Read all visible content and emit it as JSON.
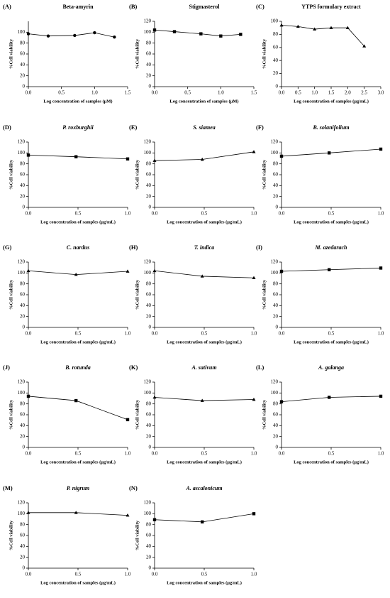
{
  "chart_data": [
    {
      "type": "line",
      "label": "(A)",
      "title": "Beta-amyrin",
      "title_style": "normal",
      "marker": "circle",
      "color": "#000000",
      "ylabel": "%Cell viability",
      "xlabel": "Log concentration of samples (μM)",
      "x": [
        0,
        0.3,
        0.7,
        1.0,
        1.3
      ],
      "values": [
        97,
        93,
        94,
        99,
        91
      ],
      "xlim": [
        0,
        1.5
      ],
      "xticks": [
        {
          "value": 0,
          "label": "0.0"
        },
        0.5,
        {
          "value": 1,
          "label": "1.0"
        },
        1.5
      ],
      "ylim": [
        0,
        120
      ],
      "yticks": [
        0,
        20,
        40,
        60,
        80,
        100
      ]
    },
    {
      "type": "line",
      "label": "(B)",
      "title": "Stigmasterol",
      "title_style": "normal",
      "marker": "square",
      "color": "#000000",
      "ylabel": "%Cell viability",
      "xlabel": "Log concentration of samples (μM)",
      "x": [
        0,
        0.3,
        0.7,
        1.0,
        1.3
      ],
      "values": [
        104,
        101,
        97,
        93,
        96
      ],
      "xlim": [
        0,
        1.5
      ],
      "xticks": [
        {
          "value": 0,
          "label": "0.0"
        },
        0.5,
        {
          "value": 1,
          "label": "1.0"
        },
        1.5
      ],
      "ylim": [
        0,
        120
      ],
      "yticks": [
        0,
        20,
        40,
        60,
        80,
        100,
        120
      ]
    },
    {
      "type": "line",
      "label": "(C)",
      "title": "YTPS formulary extract",
      "title_style": "normal",
      "marker": "triangle",
      "color": "#000000",
      "ylabel": "%Cell viability",
      "xlabel": "Log concentration of samples (μg/mL)",
      "x": [
        0,
        0.5,
        1.0,
        1.5,
        2.0,
        2.5
      ],
      "values": [
        94,
        92,
        88,
        90,
        90,
        62
      ],
      "xlim": [
        0,
        3
      ],
      "xticks": [
        {
          "value": 0,
          "label": "0.0"
        },
        0.5,
        {
          "value": 1,
          "label": "1.0"
        },
        1.5,
        {
          "value": 2,
          "label": "2.0"
        },
        2.5,
        {
          "value": 3,
          "label": "3.0"
        }
      ],
      "ylim": [
        0,
        100
      ],
      "yticks": [
        0,
        20,
        40,
        60,
        80,
        100
      ]
    },
    {
      "type": "line",
      "label": "(D)",
      "title": "P. roxburghii",
      "title_style": "italic",
      "marker": "square",
      "color": "#000000",
      "ylabel": "%Cell viability",
      "xlabel": "Log concentration of samples (μg/mL)",
      "x": [
        0,
        0.48,
        1.0
      ],
      "values": [
        96,
        93,
        89
      ],
      "xlim": [
        0,
        1
      ],
      "xticks": [
        {
          "value": 0,
          "label": "0.0"
        },
        0.5,
        {
          "value": 1,
          "label": "1.0"
        }
      ],
      "ylim": [
        0,
        120
      ],
      "yticks": [
        0,
        20,
        40,
        60,
        80,
        100,
        120
      ]
    },
    {
      "type": "line",
      "label": "(E)",
      "title": "S. siamea",
      "title_style": "italic",
      "marker": "triangle",
      "color": "#000000",
      "ylabel": "%Cell viability",
      "xlabel": "Log concentration of samples (μg/mL)",
      "x": [
        0,
        0.48,
        1.0
      ],
      "values": [
        86,
        88,
        102
      ],
      "xlim": [
        0,
        1
      ],
      "xticks": [
        {
          "value": 0,
          "label": "0.0"
        },
        0.5,
        {
          "value": 1,
          "label": "1.0"
        }
      ],
      "ylim": [
        0,
        120
      ],
      "yticks": [
        0,
        20,
        40,
        60,
        80,
        100,
        120
      ]
    },
    {
      "type": "line",
      "label": "(F)",
      "title": "B. solanifolium",
      "title_style": "italic",
      "marker": "square",
      "color": "#000000",
      "ylabel": "%Cell viability",
      "xlabel": "Log concentration of samples (μg/mL)",
      "x": [
        0,
        0.48,
        1.0
      ],
      "values": [
        94,
        100,
        107
      ],
      "xlim": [
        0,
        1
      ],
      "xticks": [
        {
          "value": 0,
          "label": "0.0"
        },
        0.5,
        {
          "value": 1,
          "label": "1.0"
        }
      ],
      "ylim": [
        0,
        120
      ],
      "yticks": [
        0,
        20,
        40,
        60,
        80,
        100,
        120
      ]
    },
    {
      "type": "line",
      "label": "(G)",
      "title": "C. nardus",
      "title_style": "italic",
      "marker": "triangle",
      "color": "#000000",
      "ylabel": "%Cell viability",
      "xlabel": "Log concentration of samples (μg/mL)",
      "x": [
        0,
        0.48,
        1.0
      ],
      "values": [
        104,
        97,
        103
      ],
      "xlim": [
        0,
        1
      ],
      "xticks": [
        {
          "value": 0,
          "label": "0.0"
        },
        0.5,
        {
          "value": 1,
          "label": "1.0"
        }
      ],
      "ylim": [
        0,
        120
      ],
      "yticks": [
        0,
        20,
        40,
        60,
        80,
        100,
        120
      ]
    },
    {
      "type": "line",
      "label": "(H)",
      "title": "T. indica",
      "title_style": "italic",
      "marker": "triangle",
      "color": "#000000",
      "ylabel": "%Cell viability",
      "xlabel": "Log concentration of samples (μg/mL)",
      "x": [
        0,
        0.48,
        1.0
      ],
      "values": [
        104,
        94,
        91
      ],
      "xlim": [
        0,
        1
      ],
      "xticks": [
        {
          "value": 0,
          "label": "0.0"
        },
        0.5,
        {
          "value": 1,
          "label": "1.0"
        }
      ],
      "ylim": [
        0,
        120
      ],
      "yticks": [
        0,
        20,
        40,
        60,
        80,
        100,
        120
      ]
    },
    {
      "type": "line",
      "label": "(I)",
      "title": "M. azedarach",
      "title_style": "italic",
      "marker": "square",
      "color": "#000000",
      "ylabel": "%Cell viability",
      "xlabel": "Log concentration of samples (μg/mL)",
      "x": [
        0,
        0.48,
        1.0
      ],
      "values": [
        103,
        106,
        109
      ],
      "xlim": [
        0,
        1
      ],
      "xticks": [
        {
          "value": 0,
          "label": "0.0"
        },
        0.5,
        {
          "value": 1,
          "label": "1.0"
        }
      ],
      "ylim": [
        0,
        120
      ],
      "yticks": [
        0,
        20,
        40,
        60,
        80,
        100,
        120
      ]
    },
    {
      "type": "line",
      "label": "(J)",
      "title": "B. rotunda",
      "title_style": "italic",
      "marker": "square",
      "color": "#000000",
      "ylabel": "%Cell viability",
      "xlabel": "Log concentration of samples (μg/mL)",
      "x": [
        0,
        0.48,
        1.0
      ],
      "values": [
        94,
        86,
        51
      ],
      "xlim": [
        0,
        1
      ],
      "xticks": [
        {
          "value": 0,
          "label": "0.0"
        },
        0.5,
        {
          "value": 1,
          "label": "1.0"
        }
      ],
      "ylim": [
        0,
        120
      ],
      "yticks": [
        0,
        20,
        40,
        60,
        80,
        100,
        120
      ]
    },
    {
      "type": "line",
      "label": "(K)",
      "title": "A. sativum",
      "title_style": "italic",
      "marker": "triangle",
      "color": "#000000",
      "ylabel": "%Cell viability",
      "xlabel": "Log concentration of samples (μg/mL)",
      "x": [
        0,
        0.48,
        1.0
      ],
      "values": [
        92,
        86,
        88
      ],
      "xlim": [
        0,
        1
      ],
      "xticks": [
        {
          "value": 0,
          "label": "0.0"
        },
        0.5,
        {
          "value": 1,
          "label": "1.0"
        }
      ],
      "ylim": [
        0,
        120
      ],
      "yticks": [
        0,
        20,
        40,
        60,
        80,
        100,
        120
      ]
    },
    {
      "type": "line",
      "label": "(L)",
      "title": "A. galanga",
      "title_style": "italic",
      "marker": "square",
      "color": "#000000",
      "ylabel": "%Cell viability",
      "xlabel": "Log concentration of samples (μg/mL)",
      "x": [
        0,
        0.48,
        1.0
      ],
      "values": [
        84,
        92,
        94
      ],
      "xlim": [
        0,
        1
      ],
      "xticks": [
        {
          "value": 0,
          "label": "0.0"
        },
        0.5,
        {
          "value": 1,
          "label": "1.0"
        }
      ],
      "ylim": [
        0,
        120
      ],
      "yticks": [
        0,
        20,
        40,
        60,
        80,
        100,
        120
      ]
    },
    {
      "type": "line",
      "label": "(M)",
      "title": "P. nigrum",
      "title_style": "italic",
      "marker": "triangle",
      "color": "#000000",
      "ylabel": "%Cell viability",
      "xlabel": "Log concentration of samples (μg/mL)",
      "x": [
        0,
        0.48,
        1.0
      ],
      "values": [
        102,
        102,
        97
      ],
      "xlim": [
        0,
        1
      ],
      "xticks": [
        {
          "value": 0,
          "label": "0.0"
        },
        0.5,
        {
          "value": 1,
          "label": "1.0"
        }
      ],
      "ylim": [
        0,
        120
      ],
      "yticks": [
        0,
        20,
        40,
        60,
        80,
        100,
        120
      ]
    },
    {
      "type": "line",
      "label": "(N)",
      "title": "A. ascalonicum",
      "title_style": "italic",
      "marker": "square",
      "color": "#000000",
      "ylabel": "%Cell viability",
      "xlabel": "Log concentration of samples (μg/mL)",
      "x": [
        0,
        0.48,
        1.0
      ],
      "values": [
        89,
        85,
        100
      ],
      "xlim": [
        0,
        1
      ],
      "xticks": [
        {
          "value": 0,
          "label": "0.0"
        },
        0.5,
        {
          "value": 1,
          "label": "1.0"
        }
      ],
      "ylim": [
        0,
        120
      ],
      "yticks": [
        0,
        20,
        40,
        60,
        80,
        100,
        120
      ]
    }
  ]
}
